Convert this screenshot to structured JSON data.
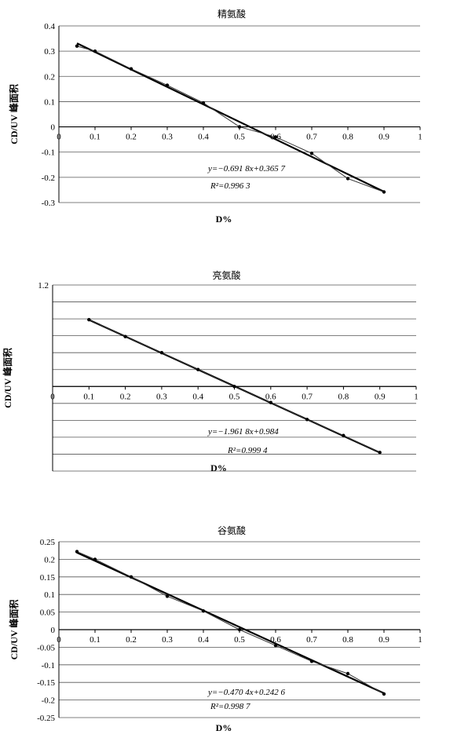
{
  "chart_data": [
    {
      "type": "scatter",
      "title": "精氨酸",
      "xlabel": "D%",
      "ylabel": "CD/UV 峰面积",
      "xlim": [
        0,
        1
      ],
      "ylim": [
        -0.3,
        0.4
      ],
      "x_ticks": [
        "0",
        "0.1",
        "0.2",
        "0.3",
        "0.4",
        "0.5",
        "0.6",
        "0.7",
        "0.8",
        "0.9",
        "1"
      ],
      "y_ticks": [
        "0.4",
        "0.3",
        "0.2",
        "0.1",
        "0",
        "-0.1",
        "-0.2",
        "-0.3"
      ],
      "grid": true,
      "series": [
        {
          "x": [
            0.05,
            0.1,
            0.2,
            0.3,
            0.4,
            0.5,
            0.6,
            0.7,
            0.8,
            0.9
          ],
          "y": [
            0.32,
            0.3,
            0.23,
            0.165,
            0.095,
            0.0,
            -0.04,
            -0.105,
            -0.205,
            -0.258
          ]
        }
      ],
      "trendline": {
        "slope": -0.6918,
        "intercept": 0.3657
      },
      "equation": "y=−0.691 8x+0.365 7",
      "r2": "R²=0.996 3"
    },
    {
      "type": "scatter",
      "title": "亮氨酸",
      "xlabel": "D%",
      "ylabel": "CD/UV 峰面积",
      "xlim": [
        0,
        1
      ],
      "ylim": [
        -1.0,
        1.2
      ],
      "x_ticks": [
        "0",
        "0.1",
        "0.2",
        "0.3",
        "0.4",
        "0.5",
        "0.6",
        "0.7",
        "0.8",
        "0.9",
        "1"
      ],
      "y_ticks": [
        "1.2"
      ],
      "grid": true,
      "series": [
        {
          "x": [
            0.1,
            0.2,
            0.3,
            0.4,
            0.5,
            0.6,
            0.7,
            0.8,
            0.9
          ],
          "y": [
            0.79,
            0.59,
            0.4,
            0.2,
            0.0,
            -0.19,
            -0.39,
            -0.58,
            -0.78
          ]
        }
      ],
      "trendline": {
        "slope": -1.9618,
        "intercept": 0.984
      },
      "equation": "y=−1.961 8x+0.984",
      "r2": "R²=0.999 4"
    },
    {
      "type": "scatter",
      "title": "谷氨酸",
      "xlabel": "D%",
      "ylabel": "CD/UV 峰面积",
      "xlim": [
        0,
        1
      ],
      "ylim": [
        -0.25,
        0.25
      ],
      "x_ticks": [
        "0",
        "0.1",
        "0.2",
        "0.3",
        "0.4",
        "0.5",
        "0.6",
        "0.7",
        "0.8",
        "0.9",
        "1"
      ],
      "y_ticks": [
        "0.25",
        "0.2",
        "0.15",
        "0.1",
        "0.05",
        "0",
        "-0.05",
        "-0.1",
        "-0.15",
        "-0.2",
        "-0.25"
      ],
      "grid": true,
      "series": [
        {
          "x": [
            0.05,
            0.1,
            0.2,
            0.3,
            0.4,
            0.5,
            0.6,
            0.7,
            0.8,
            0.9
          ],
          "y": [
            0.222,
            0.2,
            0.15,
            0.095,
            0.053,
            0.0,
            -0.045,
            -0.09,
            -0.125,
            -0.183
          ]
        }
      ],
      "trendline": {
        "slope": -0.4704,
        "intercept": 0.2426
      },
      "equation": "y=−0.470 4x+0.242 6",
      "r2": "R²=0.998 7"
    }
  ]
}
